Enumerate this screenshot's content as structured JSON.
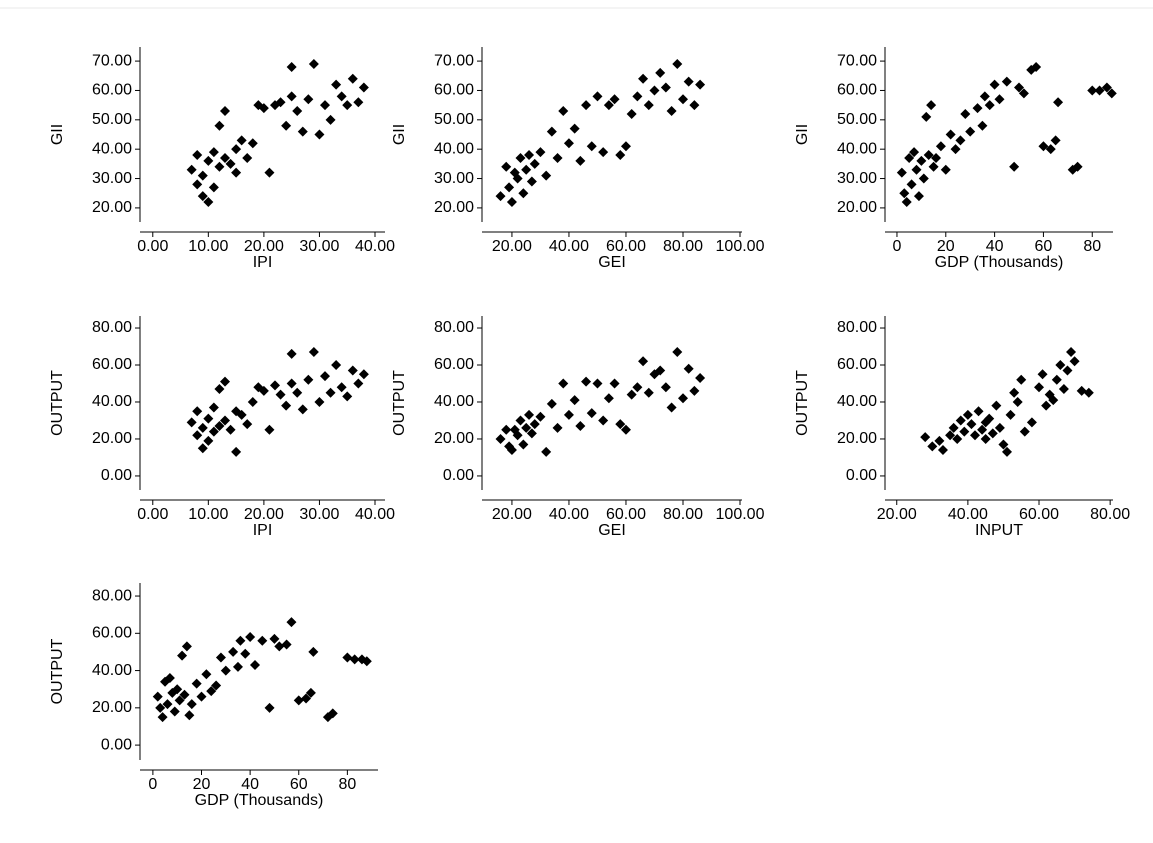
{
  "chart_data": [
    {
      "type": "scatter",
      "x_label": "IPI",
      "y_label": "GII",
      "color": "#000000",
      "x": [
        7,
        8,
        8,
        9,
        9,
        10,
        10,
        11,
        11,
        12,
        12,
        13,
        13,
        14,
        15,
        15,
        16,
        17,
        18,
        19,
        20,
        21,
        22,
        23,
        24,
        25,
        25,
        26,
        27,
        28,
        29,
        30,
        31,
        32,
        33,
        34,
        35,
        36,
        37,
        38
      ],
      "values": [
        33,
        38,
        28,
        24,
        31,
        22,
        36,
        27,
        39,
        34,
        48,
        37,
        53,
        35,
        40,
        32,
        43,
        37,
        42,
        55,
        54,
        32,
        55,
        56,
        48,
        68,
        58,
        53,
        46,
        57,
        69,
        45,
        55,
        50,
        62,
        58,
        55,
        64,
        56,
        61
      ],
      "xlim": [
        -2.3,
        41.8
      ],
      "ylim": [
        15.2,
        74.8
      ],
      "xticks": [
        {
          "value": 0,
          "label": "0.00"
        },
        {
          "value": 10,
          "label": "10.00"
        },
        {
          "value": 20,
          "label": "20.00"
        },
        {
          "value": 30,
          "label": "30.00"
        },
        {
          "value": 40,
          "label": "40.00"
        }
      ],
      "yticks": [
        {
          "value": 20,
          "label": "20.00"
        },
        {
          "value": 30,
          "label": "30.00"
        },
        {
          "value": 40,
          "label": "40.00"
        },
        {
          "value": 50,
          "label": "50.00"
        },
        {
          "value": 60,
          "label": "60.00"
        },
        {
          "value": 70,
          "label": "70.00"
        }
      ]
    },
    {
      "type": "scatter",
      "x_label": "GEI",
      "y_label": "GII",
      "color": "#000000",
      "x": [
        16,
        18,
        19,
        20,
        21,
        22,
        23,
        24,
        25,
        26,
        27,
        28,
        30,
        32,
        34,
        36,
        38,
        40,
        42,
        44,
        46,
        48,
        50,
        52,
        54,
        56,
        58,
        60,
        62,
        64,
        66,
        68,
        70,
        72,
        74,
        76,
        78,
        80,
        82,
        84,
        86
      ],
      "values": [
        24,
        34,
        27,
        22,
        32,
        30,
        37,
        25,
        33,
        38,
        29,
        35,
        39,
        31,
        46,
        37,
        53,
        42,
        47,
        36,
        55,
        41,
        58,
        39,
        55,
        57,
        38,
        41,
        52,
        58,
        64,
        55,
        60,
        66,
        61,
        53,
        69,
        57,
        63,
        55,
        62
      ],
      "xlim": [
        9.5,
        100.7
      ],
      "ylim": [
        15.2,
        74.8
      ],
      "xticks": [
        {
          "value": 20,
          "label": "20.00"
        },
        {
          "value": 40,
          "label": "40.00"
        },
        {
          "value": 60,
          "label": "60.00"
        },
        {
          "value": 80,
          "label": "80.00"
        },
        {
          "value": 100,
          "label": "100.00"
        }
      ],
      "yticks": [
        {
          "value": 20,
          "label": "20.00"
        },
        {
          "value": 30,
          "label": "30.00"
        },
        {
          "value": 40,
          "label": "40.00"
        },
        {
          "value": 50,
          "label": "50.00"
        },
        {
          "value": 60,
          "label": "60.00"
        },
        {
          "value": 70,
          "label": "70.00"
        }
      ]
    },
    {
      "type": "scatter",
      "x_label": "GDP (Thousands)",
      "y_label": "GII",
      "color": "#000000",
      "x": [
        2,
        3,
        4,
        5,
        6,
        7,
        8,
        9,
        10,
        11,
        12,
        13,
        14,
        15,
        16,
        18,
        20,
        22,
        24,
        26,
        28,
        30,
        33,
        35,
        36,
        38,
        40,
        42,
        45,
        48,
        50,
        52,
        55,
        57,
        60,
        63,
        65,
        66,
        72,
        74,
        80,
        83,
        86,
        88
      ],
      "values": [
        32,
        25,
        22,
        37,
        28,
        39,
        33,
        24,
        36,
        30,
        51,
        38,
        55,
        34,
        37,
        41,
        33,
        45,
        40,
        43,
        52,
        46,
        54,
        48,
        58,
        55,
        62,
        57,
        63,
        34,
        61,
        59,
        67,
        68,
        41,
        40,
        43,
        56,
        33,
        34,
        60,
        60,
        61,
        59
      ],
      "xlim": [
        -4.9,
        88.5
      ],
      "ylim": [
        15.2,
        74.8
      ],
      "xticks": [
        0,
        20,
        40,
        60,
        80
      ],
      "yticks": [
        {
          "value": 20,
          "label": "20.00"
        },
        {
          "value": 30,
          "label": "30.00"
        },
        {
          "value": 40,
          "label": "40.00"
        },
        {
          "value": 50,
          "label": "50.00"
        },
        {
          "value": 60,
          "label": "60.00"
        },
        {
          "value": 70,
          "label": "70.00"
        }
      ]
    },
    {
      "type": "scatter",
      "x_label": "IPI",
      "y_label": "OUTPUT",
      "color": "#000000",
      "x": [
        7,
        8,
        8,
        9,
        9,
        10,
        10,
        11,
        11,
        12,
        12,
        13,
        13,
        14,
        15,
        15,
        16,
        17,
        18,
        19,
        20,
        21,
        22,
        23,
        24,
        25,
        25,
        26,
        27,
        28,
        29,
        30,
        31,
        32,
        33,
        34,
        35,
        36,
        37,
        38
      ],
      "values": [
        29,
        35,
        22,
        15,
        26,
        19,
        31,
        24,
        37,
        27,
        47,
        30,
        51,
        25,
        35,
        13,
        33,
        28,
        40,
        48,
        46,
        25,
        49,
        44,
        38,
        66,
        50,
        45,
        36,
        52,
        67,
        40,
        54,
        45,
        60,
        48,
        43,
        57,
        50,
        55
      ],
      "xlim": [
        -2.3,
        41.8
      ],
      "ylim": [
        -7.6,
        86.5
      ],
      "xticks": [
        {
          "value": 0,
          "label": "0.00"
        },
        {
          "value": 10,
          "label": "10.00"
        },
        {
          "value": 20,
          "label": "20.00"
        },
        {
          "value": 30,
          "label": "30.00"
        },
        {
          "value": 40,
          "label": "40.00"
        }
      ],
      "yticks": [
        {
          "value": 0,
          "label": "0.00"
        },
        {
          "value": 20,
          "label": "20.00"
        },
        {
          "value": 40,
          "label": "40.00"
        },
        {
          "value": 60,
          "label": "60.00"
        },
        {
          "value": 80,
          "label": "80.00"
        }
      ]
    },
    {
      "type": "scatter",
      "x_label": "GEI",
      "y_label": "OUTPUT",
      "color": "#000000",
      "x": [
        16,
        18,
        19,
        20,
        21,
        22,
        23,
        24,
        25,
        26,
        27,
        28,
        30,
        32,
        34,
        36,
        38,
        40,
        42,
        44,
        46,
        48,
        50,
        52,
        54,
        56,
        58,
        60,
        62,
        64,
        66,
        68,
        70,
        72,
        74,
        76,
        78,
        80,
        82,
        84,
        86
      ],
      "values": [
        20,
        25,
        16,
        14,
        25,
        22,
        30,
        17,
        26,
        33,
        23,
        28,
        32,
        13,
        39,
        26,
        50,
        33,
        41,
        27,
        51,
        34,
        50,
        30,
        42,
        50,
        28,
        25,
        44,
        48,
        62,
        45,
        55,
        57,
        48,
        37,
        67,
        42,
        58,
        46,
        53
      ],
      "xlim": [
        9.5,
        100.7
      ],
      "ylim": [
        -7.6,
        86.5
      ],
      "xticks": [
        {
          "value": 20,
          "label": "20.00"
        },
        {
          "value": 40,
          "label": "40.00"
        },
        {
          "value": 60,
          "label": "60.00"
        },
        {
          "value": 80,
          "label": "80.00"
        },
        {
          "value": 100,
          "label": "100.00"
        }
      ],
      "yticks": [
        {
          "value": 0,
          "label": "0.00"
        },
        {
          "value": 20,
          "label": "20.00"
        },
        {
          "value": 40,
          "label": "40.00"
        },
        {
          "value": 60,
          "label": "60.00"
        },
        {
          "value": 80,
          "label": "80.00"
        }
      ]
    },
    {
      "type": "scatter",
      "x_label": "INPUT",
      "y_label": "OUTPUT",
      "color": "#000000",
      "x": [
        28,
        30,
        32,
        33,
        35,
        36,
        37,
        38,
        39,
        40,
        41,
        42,
        43,
        44,
        45,
        45,
        46,
        47,
        48,
        49,
        50,
        51,
        52,
        53,
        54,
        55,
        56,
        58,
        60,
        61,
        62,
        63,
        64,
        65,
        66,
        67,
        68,
        69,
        70,
        72,
        74
      ],
      "values": [
        21,
        16,
        19,
        14,
        22,
        26,
        20,
        30,
        24,
        33,
        28,
        22,
        35,
        25,
        29,
        20,
        31,
        23,
        38,
        26,
        17,
        13,
        33,
        45,
        40,
        52,
        24,
        29,
        48,
        55,
        38,
        44,
        41,
        52,
        60,
        47,
        57,
        67,
        62,
        46,
        45
      ],
      "xlim": [
        16.7,
        80.8
      ],
      "ylim": [
        -7.6,
        86.5
      ],
      "xticks": [
        {
          "value": 20,
          "label": "20.00"
        },
        {
          "value": 40,
          "label": "40.00"
        },
        {
          "value": 60,
          "label": "60.00"
        },
        {
          "value": 80,
          "label": "80.00"
        }
      ],
      "yticks": [
        {
          "value": 0,
          "label": "0.00"
        },
        {
          "value": 20,
          "label": "20.00"
        },
        {
          "value": 40,
          "label": "40.00"
        },
        {
          "value": 60,
          "label": "60.00"
        },
        {
          "value": 80,
          "label": "80.00"
        }
      ]
    },
    {
      "type": "scatter",
      "x_label": "GDP (Thousands)",
      "y_label": "OUTPUT",
      "color": "#000000",
      "x": [
        2,
        3,
        4,
        5,
        6,
        7,
        8,
        9,
        10,
        11,
        12,
        13,
        14,
        15,
        16,
        18,
        20,
        22,
        24,
        26,
        28,
        30,
        33,
        35,
        36,
        38,
        40,
        42,
        45,
        48,
        50,
        52,
        55,
        57,
        60,
        63,
        65,
        66,
        72,
        74,
        80,
        83,
        86,
        88
      ],
      "values": [
        26,
        20,
        15,
        34,
        22,
        36,
        28,
        18,
        30,
        24,
        48,
        27,
        53,
        16,
        22,
        33,
        26,
        38,
        29,
        32,
        47,
        40,
        50,
        42,
        56,
        49,
        58,
        43,
        56,
        20,
        57,
        53,
        54,
        66,
        24,
        25,
        28,
        50,
        15,
        17,
        47,
        46,
        46,
        45
      ],
      "xlim": [
        -5.3,
        92.6
      ],
      "ylim": [
        -8,
        87
      ],
      "xticks": [
        0,
        20,
        40,
        60,
        80
      ],
      "yticks": [
        {
          "value": 0,
          "label": "0.00"
        },
        {
          "value": 20,
          "label": "20.00"
        },
        {
          "value": 40,
          "label": "40.00"
        },
        {
          "value": 60,
          "label": "60.00"
        },
        {
          "value": 80,
          "label": "80.00"
        }
      ]
    }
  ]
}
